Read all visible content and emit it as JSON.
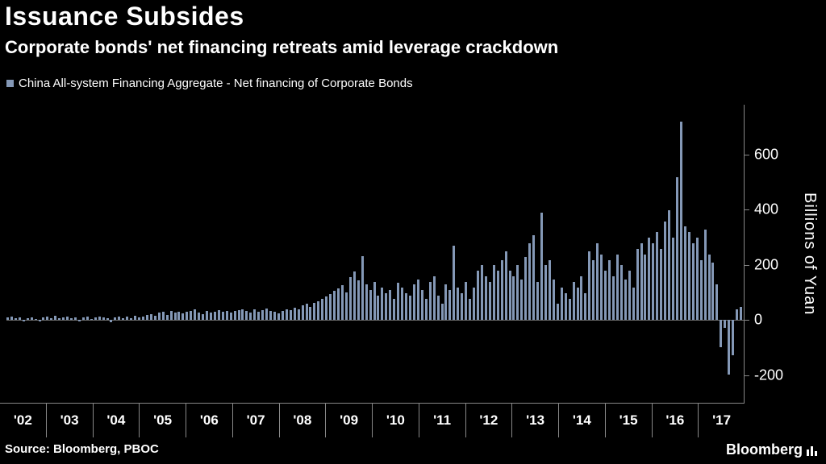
{
  "header": {
    "title": "Issuance Subsides",
    "subtitle": "Corporate bonds' net financing retreats amid leverage crackdown"
  },
  "legend": {
    "label": "China All-system Financing Aggregate - Net financing of Corporate Bonds"
  },
  "footer": {
    "source": "Source: Bloomberg, PBOC",
    "brand": "Bloomberg"
  },
  "chart_data": {
    "type": "bar",
    "title": "Issuance Subsides",
    "subtitle": "Corporate bonds' net financing retreats amid leverage crackdown",
    "legend_entry": "China All-system Financing Aggregate - Net financing of Corporate Bonds",
    "ylabel": "Billions of Yuan",
    "yticks": [
      600,
      400,
      200,
      0,
      -200
    ],
    "ylim": [
      -300,
      780
    ],
    "grid": false,
    "legend_position": "top-left",
    "bar_color": "#8498b6",
    "axis_color": "#888888",
    "background_color": "#000000",
    "x_unit": "months",
    "years": [
      {
        "label": "'02",
        "values": [
          8,
          12,
          6,
          10,
          -5,
          7,
          9,
          5,
          -4,
          8,
          11,
          6
        ]
      },
      {
        "label": "'03",
        "values": [
          14,
          7,
          10,
          12,
          6,
          9,
          -6,
          8,
          11,
          5,
          9,
          13
        ]
      },
      {
        "label": "'04",
        "values": [
          10,
          6,
          -8,
          9,
          13,
          7,
          11,
          6,
          16,
          9,
          12,
          18
        ]
      },
      {
        "label": "'05",
        "values": [
          22,
          14,
          26,
          31,
          19,
          34,
          27,
          30,
          24,
          29,
          33,
          38
        ]
      },
      {
        "label": "'06",
        "values": [
          28,
          22,
          34,
          26,
          31,
          37,
          29,
          33,
          27,
          32,
          36,
          40
        ]
      },
      {
        "label": "'07",
        "values": [
          33,
          28,
          38,
          31,
          36,
          42,
          34,
          29,
          24,
          34,
          39,
          36
        ]
      },
      {
        "label": "'08",
        "values": [
          44,
          38,
          52,
          58,
          48,
          62,
          68,
          76,
          86,
          95,
          105,
          115
        ]
      },
      {
        "label": "'09",
        "values": [
          125,
          100,
          155,
          175,
          145,
          230,
          128,
          108,
          138,
          88,
          118,
          98
        ]
      },
      {
        "label": "'10",
        "values": [
          108,
          78,
          135,
          118,
          98,
          88,
          128,
          148,
          108,
          78,
          138,
          158
        ]
      },
      {
        "label": "'11",
        "values": [
          88,
          58,
          128,
          108,
          268,
          118,
          98,
          138,
          78,
          118,
          178,
          198
        ]
      },
      {
        "label": "'12",
        "values": [
          158,
          138,
          198,
          178,
          218,
          248,
          178,
          158,
          198,
          148,
          228,
          278
        ]
      },
      {
        "label": "'13",
        "values": [
          308,
          138,
          388,
          198,
          218,
          148,
          58,
          118,
          98,
          78,
          138,
          118
        ]
      },
      {
        "label": "'14",
        "values": [
          158,
          98,
          248,
          218,
          278,
          238,
          178,
          218,
          158,
          238,
          198,
          148
        ]
      },
      {
        "label": "'15",
        "values": [
          178,
          118,
          258,
          278,
          238,
          298,
          278,
          318,
          258,
          358,
          398,
          298
        ]
      },
      {
        "label": "'16",
        "values": [
          518,
          718,
          338,
          318,
          278,
          298,
          218,
          328,
          238,
          208,
          128,
          -98
        ]
      },
      {
        "label": "'17",
        "values": [
          -28,
          -198,
          -128,
          38,
          48
        ]
      }
    ]
  }
}
